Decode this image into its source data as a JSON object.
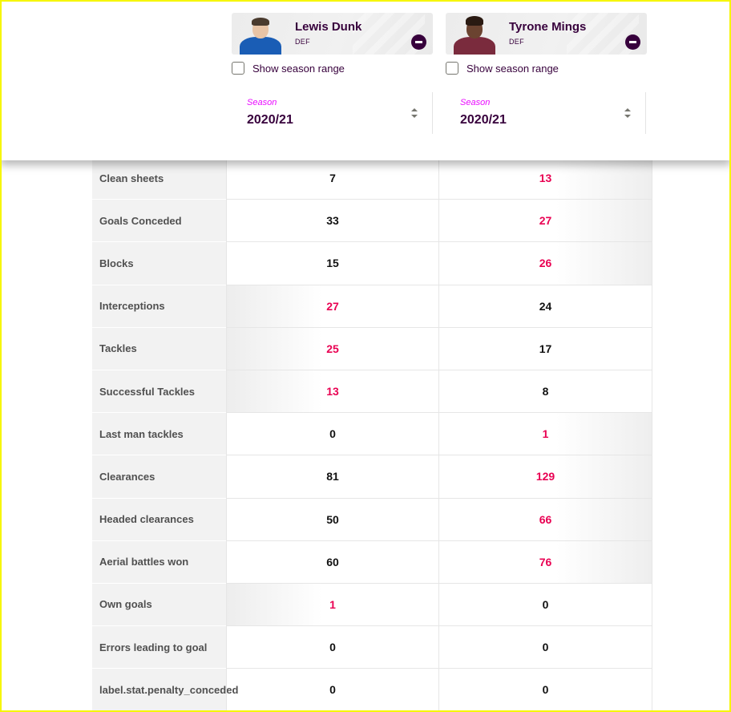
{
  "players": [
    {
      "name": "Lewis Dunk",
      "position": "DEF",
      "season_range_label": "Show season range",
      "season_caption": "Season",
      "season_value": "2020/21"
    },
    {
      "name": "Tyrone Mings",
      "position": "DEF",
      "season_range_label": "Show season range",
      "season_caption": "Season",
      "season_value": "2020/21"
    }
  ],
  "stats": [
    {
      "label": "Clean sheets",
      "left": "7",
      "right": "13",
      "winner": "right"
    },
    {
      "label": "Goals Conceded",
      "left": "33",
      "right": "27",
      "winner": "right"
    },
    {
      "label": "Blocks",
      "left": "15",
      "right": "26",
      "winner": "right"
    },
    {
      "label": "Interceptions",
      "left": "27",
      "right": "24",
      "winner": "left"
    },
    {
      "label": "Tackles",
      "left": "25",
      "right": "17",
      "winner": "left"
    },
    {
      "label": "Successful Tackles",
      "left": "13",
      "right": "8",
      "winner": "left"
    },
    {
      "label": "Last man tackles",
      "left": "0",
      "right": "1",
      "winner": "right"
    },
    {
      "label": "Clearances",
      "left": "81",
      "right": "129",
      "winner": "right"
    },
    {
      "label": "Headed clearances",
      "left": "50",
      "right": "66",
      "winner": "right"
    },
    {
      "label": "Aerial battles won",
      "left": "60",
      "right": "76",
      "winner": "right"
    },
    {
      "label": "Own goals",
      "left": "1",
      "right": "0",
      "winner": "left"
    },
    {
      "label": "Errors leading to goal",
      "left": "0",
      "right": "0",
      "winner": "none"
    },
    {
      "label": "label.stat.penalty_conceded",
      "left": "0",
      "right": "0",
      "winner": "none"
    }
  ],
  "colors": {
    "brand": "#37003c",
    "win_value": "#e90052",
    "season_caption": "#e90aff"
  },
  "icons": {
    "remove": "remove-circle-icon",
    "sort": "sort-arrows-icon"
  }
}
